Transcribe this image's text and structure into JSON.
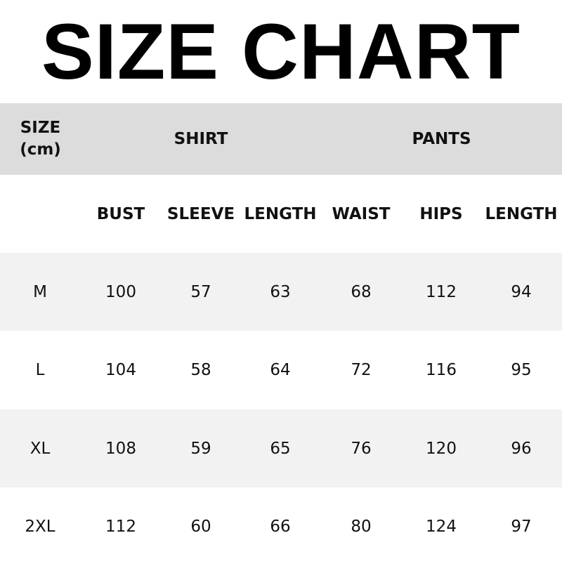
{
  "title": "SIZE CHART",
  "header": {
    "size_label_line1": "SIZE",
    "size_label_line2": "(cm)",
    "shirt_label": "SHIRT",
    "pants_label": "PANTS"
  },
  "columns": [
    "BUST",
    "SLEEVE",
    "LENGTH",
    "WAIST",
    "HIPS",
    "LENGTH"
  ],
  "rows": [
    {
      "size": "M",
      "values": [
        "100",
        "57",
        "63",
        "68",
        "112",
        "94"
      ]
    },
    {
      "size": "L",
      "values": [
        "104",
        "58",
        "64",
        "72",
        "116",
        "95"
      ]
    },
    {
      "size": "XL",
      "values": [
        "108",
        "59",
        "65",
        "76",
        "120",
        "96"
      ]
    },
    {
      "size": "2XL",
      "values": [
        "112",
        "60",
        "66",
        "80",
        "124",
        "97"
      ]
    }
  ],
  "colors": {
    "header_band": "#dcdcdc",
    "stripe": "#f2f2f2",
    "white": "#ffffff"
  }
}
